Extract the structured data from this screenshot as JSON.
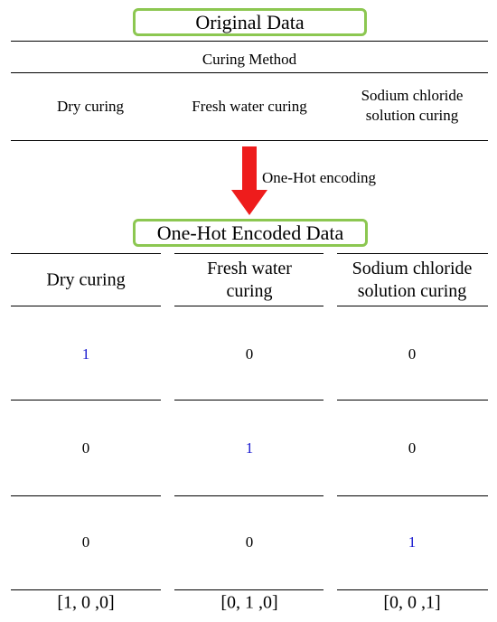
{
  "original": {
    "title": "Original Data",
    "header": "Curing Method",
    "columns": [
      "Dry curing",
      "Fresh water curing",
      "Sodium chloride solution curing"
    ]
  },
  "arrow_label": "One-Hot encoding",
  "encoded": {
    "title": "One-Hot Encoded Data",
    "columns": [
      "Dry curing",
      "Fresh water curing",
      "Sodium chloride solution curing"
    ],
    "rows": [
      [
        1,
        0,
        0
      ],
      [
        0,
        1,
        0
      ],
      [
        0,
        0,
        1
      ]
    ],
    "vectors": [
      "[1, 0 ,0]",
      "[0, 1 ,0]",
      "[0, 0 ,1]"
    ]
  }
}
